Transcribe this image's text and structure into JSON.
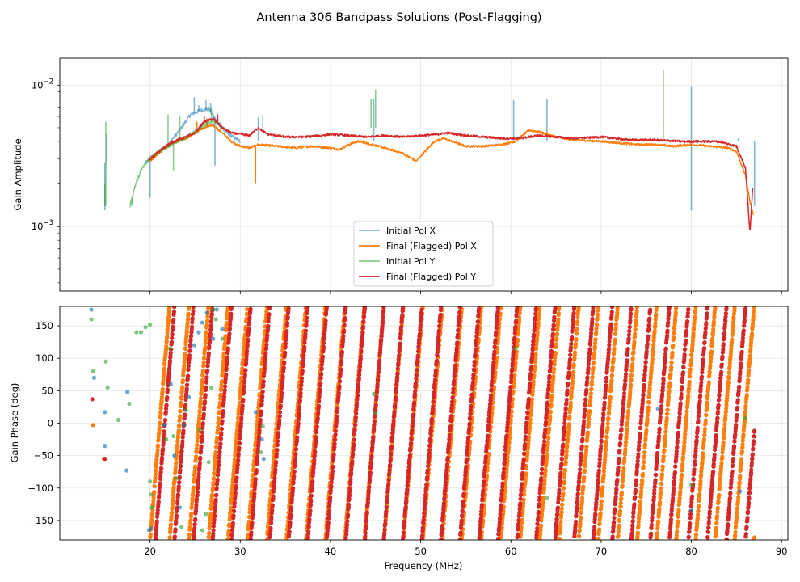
{
  "figure": {
    "title": "Antenna 306 Bandpass Solutions (Post-Flagging)"
  },
  "colors": {
    "initial_x": "#1f77b4",
    "final_x": "#ff7f0e",
    "initial_y": "#2ca02c",
    "final_y": "#d62728",
    "grid": "#e6e6e6"
  },
  "chart_data": [
    {
      "type": "line",
      "name": "amplitude",
      "title": "",
      "xlabel": "",
      "ylabel": "Gain Amplitude",
      "yscale": "log",
      "xlim": [
        10,
        90.7
      ],
      "ylim": [
        0.00035,
        0.0155
      ],
      "x_ticks": [
        20,
        30,
        40,
        50,
        60,
        70,
        80,
        90
      ],
      "y_ticks": [
        {
          "value": 0.001,
          "base": "10",
          "exp": "−3"
        },
        {
          "value": 0.01,
          "base": "10",
          "exp": "−2"
        }
      ],
      "legend": {
        "position": "lower-center",
        "entries": [
          {
            "label": "Initial Pol X",
            "series": "initial_x"
          },
          {
            "label": "Final (Flagged) Pol X",
            "series": "final_x"
          },
          {
            "label": "Initial Pol Y",
            "series": "initial_y"
          },
          {
            "label": "Final (Flagged) Pol Y",
            "series": "final_y"
          }
        ]
      },
      "series": [
        {
          "name": "Final (Flagged) Pol X",
          "key": "final_x",
          "points": [
            [
              20,
              0.0029
            ],
            [
              21,
              0.0033
            ],
            [
              22,
              0.0037
            ],
            [
              23,
              0.004
            ],
            [
              24,
              0.0042
            ],
            [
              25,
              0.0046
            ],
            [
              26,
              0.005
            ],
            [
              27,
              0.0052
            ],
            [
              28,
              0.0046
            ],
            [
              29,
              0.004
            ],
            [
              30,
              0.0037
            ],
            [
              31,
              0.0036
            ],
            [
              32,
              0.0038
            ],
            [
              34,
              0.0037
            ],
            [
              36,
              0.0036
            ],
            [
              38,
              0.0037
            ],
            [
              40,
              0.0036
            ],
            [
              41,
              0.0035
            ],
            [
              42,
              0.0038
            ],
            [
              43,
              0.004
            ],
            [
              44,
              0.0039
            ],
            [
              46,
              0.0036
            ],
            [
              48,
              0.0033
            ],
            [
              49.5,
              0.0029
            ],
            [
              50.5,
              0.0034
            ],
            [
              51.5,
              0.004
            ],
            [
              52.5,
              0.0042
            ],
            [
              53.5,
              0.004
            ],
            [
              55,
              0.0037
            ],
            [
              57,
              0.0037
            ],
            [
              59,
              0.0038
            ],
            [
              60.5,
              0.004
            ],
            [
              62,
              0.0048
            ],
            [
              63,
              0.0047
            ],
            [
              65,
              0.0043
            ],
            [
              67,
              0.0041
            ],
            [
              70,
              0.004
            ],
            [
              72,
              0.0039
            ],
            [
              74,
              0.0038
            ],
            [
              76,
              0.0038
            ],
            [
              78,
              0.0037
            ],
            [
              80,
              0.0038
            ],
            [
              82,
              0.0037
            ],
            [
              84,
              0.0036
            ],
            [
              85,
              0.0034
            ],
            [
              86,
              0.0023
            ],
            [
              86.5,
              0.0015
            ],
            [
              86.9,
              0.0012
            ]
          ],
          "spikes": [
            [
              25.2,
              0.0055
            ],
            [
              26.3,
              0.0058
            ],
            [
              31.7,
              0.002
            ]
          ]
        },
        {
          "name": "Final (Flagged) Pol Y",
          "key": "final_y",
          "points": [
            [
              20,
              0.003
            ],
            [
              21,
              0.0034
            ],
            [
              22,
              0.0038
            ],
            [
              23,
              0.0041
            ],
            [
              24,
              0.0043
            ],
            [
              25,
              0.0046
            ],
            [
              26,
              0.0055
            ],
            [
              27,
              0.0058
            ],
            [
              28,
              0.005
            ],
            [
              29,
              0.0046
            ],
            [
              30,
              0.0045
            ],
            [
              31,
              0.0044
            ],
            [
              32,
              0.005
            ],
            [
              33,
              0.0045
            ],
            [
              35,
              0.0043
            ],
            [
              37,
              0.0043
            ],
            [
              39,
              0.0044
            ],
            [
              40,
              0.0045
            ],
            [
              42,
              0.0044
            ],
            [
              44,
              0.0043
            ],
            [
              46,
              0.0044
            ],
            [
              48,
              0.0043
            ],
            [
              50,
              0.0044
            ],
            [
              52,
              0.0045
            ],
            [
              53,
              0.0046
            ],
            [
              55,
              0.0044
            ],
            [
              57,
              0.0043
            ],
            [
              59,
              0.0042
            ],
            [
              61,
              0.0042
            ],
            [
              63,
              0.0044
            ],
            [
              65,
              0.0043
            ],
            [
              67,
              0.0042
            ],
            [
              70,
              0.0043
            ],
            [
              73,
              0.0041
            ],
            [
              76,
              0.0041
            ],
            [
              79,
              0.004
            ],
            [
              81,
              0.004
            ],
            [
              83,
              0.004
            ],
            [
              85,
              0.0037
            ],
            [
              86,
              0.0026
            ],
            [
              86.5,
              0.0009
            ],
            [
              86.8,
              0.0019
            ]
          ],
          "spikes": [
            [
              26.0,
              0.006
            ],
            [
              27.5,
              0.0062
            ]
          ]
        },
        {
          "name": "Initial Pol X",
          "key": "initial_x",
          "points": [
            [
              19.5,
              0.0028
            ],
            [
              21,
              0.0034
            ],
            [
              22,
              0.0038
            ],
            [
              23.5,
              0.005
            ],
            [
              24.5,
              0.0062
            ],
            [
              25.5,
              0.0066
            ],
            [
              26.5,
              0.0068
            ],
            [
              27.5,
              0.0055
            ],
            [
              28.5,
              0.0046
            ],
            [
              30,
              0.004
            ]
          ],
          "spikes": [
            [
              15.0,
              0.0013
            ],
            [
              15.2,
              0.0045
            ],
            [
              20.0,
              0.0016
            ],
            [
              24.9,
              0.0082
            ],
            [
              25.4,
              0.0072
            ],
            [
              26.2,
              0.0078
            ],
            [
              26.7,
              0.0075
            ],
            [
              27.2,
              0.0027
            ],
            [
              32.0,
              0.0059
            ],
            [
              44.8,
              0.008
            ],
            [
              60.3,
              0.0078
            ],
            [
              64.0,
              0.008
            ],
            [
              80.0,
              0.0097
            ],
            [
              80.0,
              0.0013
            ],
            [
              85.2,
              0.0042
            ],
            [
              87.0,
              0.0014
            ]
          ]
        },
        {
          "name": "Initial Pol Y",
          "key": "initial_y",
          "points": [
            [
              17.8,
              0.0014
            ],
            [
              18.3,
              0.0019
            ],
            [
              19.0,
              0.0025
            ],
            [
              20.0,
              0.0031
            ],
            [
              21,
              0.0034
            ],
            [
              22,
              0.0037
            ],
            [
              23,
              0.004
            ],
            [
              24,
              0.0043
            ],
            [
              25,
              0.0047
            ],
            [
              26,
              0.0052
            ],
            [
              27,
              0.0056
            ],
            [
              28,
              0.005
            ]
          ],
          "spikes": [
            [
              15.0,
              0.002
            ],
            [
              15.1,
              0.0055
            ],
            [
              18.0,
              0.0014
            ],
            [
              22.0,
              0.0062
            ],
            [
              22.6,
              0.0025
            ],
            [
              23.3,
              0.006
            ],
            [
              26.8,
              0.007
            ],
            [
              32.5,
              0.0062
            ],
            [
              44.5,
              0.008
            ],
            [
              45.0,
              0.0093
            ],
            [
              76.9,
              0.0127
            ],
            [
              76.9,
              0.004
            ]
          ]
        }
      ]
    },
    {
      "type": "scatter",
      "name": "phase",
      "title": "",
      "xlabel": "Frequency (MHz)",
      "ylabel": "Gain Phase (deg)",
      "xlim": [
        10,
        90.7
      ],
      "ylim": [
        -180,
        180
      ],
      "x_ticks": [
        20,
        30,
        40,
        50,
        60,
        70,
        80,
        90
      ],
      "y_ticks": [
        -150,
        -100,
        -50,
        0,
        50,
        100,
        150
      ],
      "wrap_model": {
        "description": "phase wraps from -180 to 180; each wrap spans a frequency interval",
        "final_x_start": 20.0,
        "final_x_period_mhz": 2.16,
        "final_y_start": 20.6,
        "final_y_period_mhz": 2.11,
        "x_end": 87.0
      },
      "series": [
        {
          "name": "Initial Pol X",
          "key": "initial_x",
          "points": [
            [
              13.5,
              175
            ],
            [
              13.8,
              70
            ],
            [
              15.0,
              17
            ],
            [
              15.0,
              -35
            ],
            [
              17.4,
              -73
            ],
            [
              17.5,
              48
            ],
            [
              19.9,
              -165
            ],
            [
              20.1,
              -162
            ],
            [
              21.5,
              -3
            ],
            [
              22.3,
              60
            ],
            [
              22.7,
              -50
            ],
            [
              23.3,
              -130
            ],
            [
              23.8,
              -3
            ],
            [
              24.3,
              40
            ],
            [
              24.9,
              120
            ],
            [
              25.4,
              140
            ],
            [
              25.8,
              155
            ],
            [
              26.3,
              170
            ],
            [
              27.0,
              130
            ],
            [
              27.4,
              175
            ],
            [
              28.0,
              145
            ],
            [
              31.7,
              17
            ],
            [
              32.4,
              -25
            ],
            [
              32.6,
              -55
            ],
            [
              76.3,
              22
            ],
            [
              80.0,
              -135
            ],
            [
              85.4,
              -105
            ]
          ]
        },
        {
          "name": "Initial Pol Y",
          "key": "initial_y",
          "points": [
            [
              13.5,
              160
            ],
            [
              13.7,
              80
            ],
            [
              15.1,
              95
            ],
            [
              15.3,
              55
            ],
            [
              16.5,
              5
            ],
            [
              17.7,
              30
            ],
            [
              18.5,
              140
            ],
            [
              19.0,
              140
            ],
            [
              19.5,
              148
            ],
            [
              20.0,
              152
            ],
            [
              20.0,
              -90
            ],
            [
              20.1,
              -110
            ],
            [
              20.2,
              -130
            ],
            [
              21.8,
              -25
            ],
            [
              22.2,
              115
            ],
            [
              22.6,
              -20
            ],
            [
              22.9,
              -85
            ],
            [
              23.5,
              -160
            ],
            [
              24.0,
              20
            ],
            [
              25.5,
              -10
            ],
            [
              25.8,
              -165
            ],
            [
              26.2,
              -140
            ],
            [
              26.5,
              -60
            ],
            [
              26.8,
              55
            ],
            [
              27.0,
              175
            ],
            [
              27.3,
              160
            ],
            [
              28.0,
              130
            ],
            [
              32.3,
              -45
            ],
            [
              32.5,
              -5
            ],
            [
              44.8,
              45
            ],
            [
              45.0,
              15
            ],
            [
              60.5,
              115
            ],
            [
              64.0,
              -115
            ],
            [
              80.0,
              -95
            ],
            [
              86.0,
              8
            ]
          ]
        },
        {
          "name": "Final (Flagged) Pol X",
          "key": "final_x",
          "points": [
            [
              13.7,
              -3
            ],
            [
              14.9,
              -55
            ]
          ]
        },
        {
          "name": "Final (Flagged) Pol Y",
          "key": "final_y",
          "points": [
            [
              13.6,
              37
            ],
            [
              15.0,
              -55
            ]
          ]
        }
      ]
    }
  ]
}
